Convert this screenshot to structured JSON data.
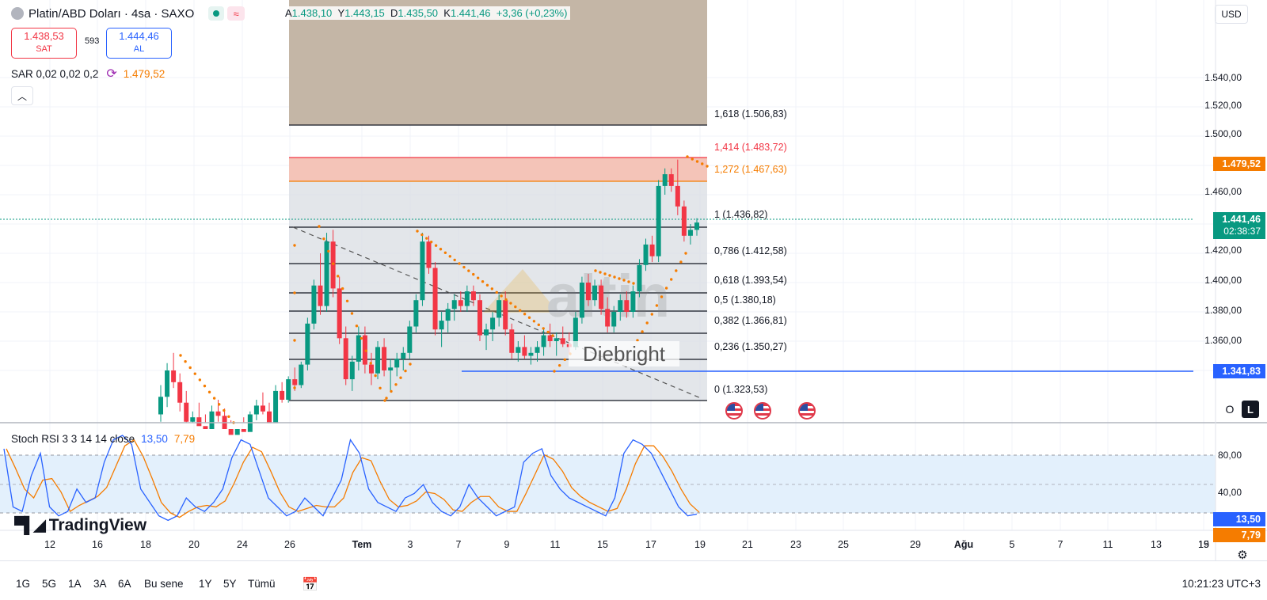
{
  "header": {
    "symbol_title": "Platin/ABD Doları · 4sa · SAXO",
    "ohlc": {
      "open_label": "A",
      "open": "1.438,10",
      "high_label": "Y",
      "high": "1.443,15",
      "low_label": "D",
      "low": "1.435,50",
      "close_label": "K",
      "close": "1.441,46",
      "change": "+3,36 (+0,23%)"
    },
    "sell_price": "1.438,53",
    "sell_label": "SAT",
    "spread": "593",
    "buy_price": "1.444,46",
    "buy_label": "AL",
    "currency": "USD"
  },
  "indicators": {
    "sar_label": "SAR 0,02 0,02 0,2",
    "sar_value": "1.479,52",
    "stoch_label": "Stoch RSI 3 3 14 14 close",
    "stoch_k": "13,50",
    "stoch_d": "7,79"
  },
  "price_axis": {
    "labels": [
      "1.540,00",
      "1.520,00",
      "1.500,00",
      "1.460,00",
      "1.420,00",
      "1.400,00",
      "1.380,00",
      "1.360,00"
    ],
    "tags": {
      "sar": "1.479,52",
      "last": "1.441,46",
      "countdown": "02:38:37",
      "hline": "1.341,83"
    }
  },
  "stoch_axis": {
    "labels": [
      "80,00",
      "40,00"
    ],
    "k_tag": "13,50",
    "d_tag": "7,79"
  },
  "fib_levels": [
    "1,618 (1.506,83)",
    "1,414 (1.483,72)",
    "1,272 (1.467,63)",
    "1 (1.436,82)",
    "0,786 (1.412,58)",
    "0,618 (1.393,54)",
    "0,5 (1.380,18)",
    "0,382 (1.366,81)",
    "0,236 (1.350,27)",
    "0 (1.323,53)"
  ],
  "x_axis": [
    "12",
    "16",
    "18",
    "20",
    "24",
    "26",
    "Tem",
    "3",
    "7",
    "9",
    "11",
    "15",
    "17",
    "19",
    "21",
    "23",
    "25",
    "29",
    "Ağu",
    "5",
    "7",
    "11",
    "13",
    "15",
    "19"
  ],
  "range_buttons": [
    "1G",
    "5G",
    "1A",
    "3A",
    "6A",
    "Bu sene",
    "1Y",
    "5Y",
    "Tümü"
  ],
  "clock": "10:21:23 UTC+3",
  "watermark": {
    "brand": "TradingView",
    "author": "Diebright",
    "logo_text": "altin"
  },
  "scale_buttons": {
    "log": "O",
    "lock": "L"
  },
  "colors": {
    "up": "#089981",
    "down": "#f23645",
    "sar": "#f57c00",
    "fib_1414": "#f23645",
    "fib_1272": "#f57c00",
    "hline": "#2962ff",
    "stoch_k": "#2962ff",
    "stoch_d": "#f57c00"
  }
}
